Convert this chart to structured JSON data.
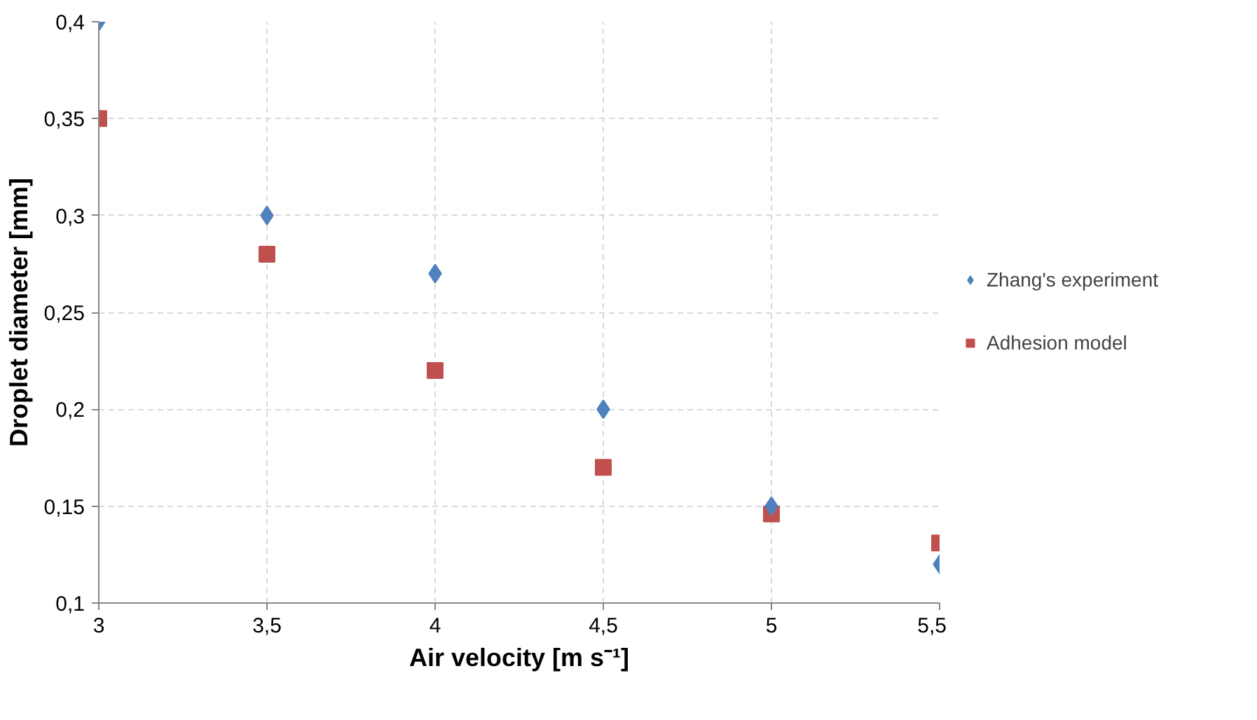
{
  "chart_data": {
    "type": "scatter",
    "xlabel": "Air velocity [m s⁻¹]",
    "ylabel": "Droplet diameter [mm]",
    "x": [
      3,
      3.5,
      4,
      4.5,
      5,
      5.5
    ],
    "series": [
      {
        "name": "Zhang's experiment",
        "color": "#4f81bd",
        "marker": "diamond",
        "values": [
          0.4,
          0.3,
          0.27,
          0.2,
          0.15,
          0.12
        ]
      },
      {
        "name": "Adhesion model",
        "color": "#c0504d",
        "marker": "square",
        "values": [
          0.35,
          0.28,
          0.22,
          0.17,
          0.146,
          0.131
        ]
      }
    ],
    "xlim": [
      3,
      5.5
    ],
    "ylim": [
      0.1,
      0.4
    ],
    "xticks": [
      3,
      {
        "value": 3.5,
        "label": "3,5"
      },
      4,
      {
        "value": 4.5,
        "label": "4,5"
      },
      5,
      {
        "value": 5.5,
        "label": "5,5"
      }
    ],
    "yticks": [
      {
        "value": 0.1,
        "label": "0,1"
      },
      {
        "value": 0.15,
        "label": "0,15"
      },
      {
        "value": 0.2,
        "label": "0,2"
      },
      {
        "value": 0.25,
        "label": "0,25"
      },
      {
        "value": 0.3,
        "label": "0,3"
      },
      {
        "value": 0.35,
        "label": "0,35"
      },
      {
        "value": 0.4,
        "label": "0,4"
      }
    ],
    "grid": true,
    "legend": "right"
  }
}
